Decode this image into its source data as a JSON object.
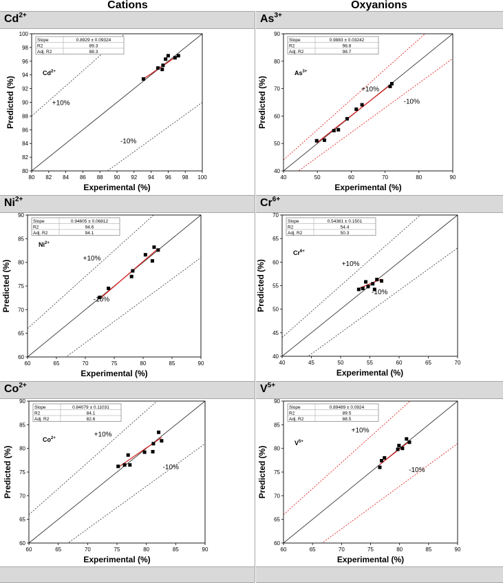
{
  "headers": {
    "left": "Cations",
    "right": "Oxyanions"
  },
  "chart_data": [
    {
      "id": "cd",
      "type": "scatter",
      "ion": "Cd",
      "charge": "2+",
      "xlabel": "Experimental (%)",
      "ylabel": "Predicted (%)",
      "xlim": [
        80,
        100
      ],
      "ylim": [
        80,
        100
      ],
      "xticks": [
        80,
        82,
        84,
        86,
        88,
        90,
        92,
        94,
        96,
        98,
        100
      ],
      "yticks": [
        80,
        82,
        84,
        86,
        88,
        90,
        92,
        94,
        96,
        98,
        100
      ],
      "stats": {
        "slope_label": "Slope",
        "slope": "0.8929 ± 0.09324",
        "r2_label": "R2",
        "r2": "89.3",
        "adjr2_label": "Adj. R2",
        "adjr2": "88.3"
      },
      "plus_label": "+10%",
      "minus_label": "-10%",
      "band_color": "#444444",
      "points": [
        [
          93.1,
          93.4
        ],
        [
          94.8,
          95.0
        ],
        [
          95.3,
          94.8
        ],
        [
          95.4,
          95.4
        ],
        [
          95.7,
          96.3
        ],
        [
          96.0,
          96.8
        ],
        [
          96.8,
          96.5
        ],
        [
          97.2,
          96.8
        ]
      ],
      "fit": [
        [
          93.1,
          93.4
        ],
        [
          97.2,
          96.9
        ]
      ]
    },
    {
      "id": "as",
      "type": "scatter",
      "ion": "As",
      "charge": "3+",
      "xlabel": "Experimental (%)",
      "ylabel": "Predicted (%)",
      "xlim": [
        40,
        90
      ],
      "ylim": [
        40,
        90
      ],
      "xticks": [
        40,
        50,
        60,
        70,
        80,
        90
      ],
      "yticks": [
        40,
        50,
        60,
        70,
        80,
        90
      ],
      "stats": {
        "slope_label": "Slope",
        "slope": "0.9883 ± 0.03242",
        "r2_label": "R2",
        "r2": "98.8",
        "adjr2_label": "Adj. R2",
        "adjr2": "98.7"
      },
      "plus_label": "+10%",
      "minus_label": "-10%",
      "band_color": "#e02020",
      "points": [
        [
          49.8,
          51.0
        ],
        [
          52.1,
          51.2
        ],
        [
          54.9,
          54.7
        ],
        [
          56.2,
          55.0
        ],
        [
          58.8,
          59.0
        ],
        [
          61.5,
          62.5
        ],
        [
          63.2,
          64.1
        ],
        [
          71.5,
          70.8
        ],
        [
          72.0,
          71.8
        ]
      ],
      "fit": [
        [
          49.8,
          50.2
        ],
        [
          72.0,
          71.8
        ]
      ]
    },
    {
      "id": "ni",
      "type": "scatter",
      "ion": "Ni",
      "charge": "2+",
      "xlabel": "Experimental (%)",
      "ylabel": "Predicted (%)",
      "xlim": [
        60,
        90
      ],
      "ylim": [
        60,
        90
      ],
      "xticks": [
        60,
        65,
        70,
        75,
        80,
        85,
        90
      ],
      "yticks": [
        60,
        65,
        70,
        75,
        80,
        85,
        90
      ],
      "stats": {
        "slope_label": "Slope",
        "slope": "0.94605 ± 0.06812",
        "r2_label": "R2",
        "r2": "94.6",
        "adjr2_label": "Adj. R2",
        "adjr2": "94.1"
      },
      "plus_label": "+10%",
      "minus_label": "-10%",
      "band_color": "#444444",
      "points": [
        [
          72.5,
          72.6
        ],
        [
          74.0,
          74.5
        ],
        [
          78.0,
          77.0
        ],
        [
          78.2,
          78.2
        ],
        [
          80.4,
          81.6
        ],
        [
          81.6,
          80.3
        ],
        [
          81.9,
          83.2
        ],
        [
          82.6,
          82.6
        ]
      ],
      "fit": [
        [
          72.5,
          72.3
        ],
        [
          82.6,
          82.9
        ]
      ]
    },
    {
      "id": "cr",
      "type": "scatter",
      "ion": "Cr",
      "charge": "6+",
      "xlabel": "Experimental (%)",
      "ylabel": "Predicted (%)",
      "xlim": [
        40,
        70
      ],
      "ylim": [
        40,
        70
      ],
      "xticks": [
        40,
        45,
        50,
        55,
        60,
        65,
        70
      ],
      "yticks": [
        40,
        45,
        50,
        55,
        60,
        65,
        70
      ],
      "stats": {
        "slope_label": "Slope",
        "slope": "0.54381 ± 0.1501",
        "r2_label": "R2",
        "r2": "54.4",
        "adjr2_label": "Adj. R2",
        "adjr2": "50.3"
      },
      "plus_label": "+10%",
      "minus_label": "-10%",
      "band_color": "#444444",
      "points": [
        [
          53.1,
          54.2
        ],
        [
          53.8,
          54.4
        ],
        [
          54.3,
          55.8
        ],
        [
          54.7,
          54.8
        ],
        [
          55.5,
          55.4
        ],
        [
          55.8,
          54.2
        ],
        [
          56.2,
          56.3
        ],
        [
          57.0,
          56.0
        ]
      ],
      "fit": [
        [
          53.1,
          54.4
        ],
        [
          57.0,
          56.4
        ]
      ]
    },
    {
      "id": "co",
      "type": "scatter",
      "ion": "Co",
      "charge": "2+",
      "xlabel": "Experimental (%)",
      "ylabel": "Predicted (%)",
      "xlim": [
        60,
        90
      ],
      "ylim": [
        60,
        90
      ],
      "xticks": [
        60,
        65,
        70,
        75,
        80,
        85,
        90
      ],
      "yticks": [
        60,
        65,
        70,
        75,
        80,
        85,
        90
      ],
      "stats": {
        "slope_label": "Slope",
        "slope": "0.84079 ± 0.11031",
        "r2_label": "R2",
        "r2": "84.1",
        "adjr2_label": "Adj. R2",
        "adjr2": "82.6"
      },
      "plus_label": "+10%",
      "minus_label": "-10%",
      "band_color": "#444444",
      "points": [
        [
          75.2,
          76.2
        ],
        [
          76.3,
          76.5
        ],
        [
          76.9,
          78.6
        ],
        [
          77.2,
          76.5
        ],
        [
          79.7,
          79.2
        ],
        [
          81.1,
          79.3
        ],
        [
          81.2,
          81.0
        ],
        [
          82.1,
          83.4
        ],
        [
          82.6,
          81.6
        ]
      ],
      "fit": [
        [
          75.2,
          76.0
        ],
        [
          82.6,
          82.3
        ]
      ]
    },
    {
      "id": "v",
      "type": "scatter",
      "ion": "V",
      "charge": "5+",
      "xlabel": "Experimental (%)",
      "ylabel": "Predicted (%)",
      "xlim": [
        60,
        90
      ],
      "ylim": [
        60,
        90
      ],
      "xticks": [
        60,
        65,
        70,
        75,
        80,
        85,
        90
      ],
      "yticks": [
        60,
        65,
        70,
        75,
        80,
        85,
        90
      ],
      "stats": {
        "slope_label": "Slope",
        "slope": "0.89489 ± 0.0924",
        "r2_label": "R2",
        "r2": "89.5",
        "adjr2_label": "Adj. R2",
        "adjr2": "88.5"
      },
      "plus_label": "+10%",
      "minus_label": "-10%",
      "band_color": "#e02020",
      "points": [
        [
          76.6,
          76.0
        ],
        [
          76.9,
          77.4
        ],
        [
          77.4,
          78.0
        ],
        [
          79.7,
          79.8
        ],
        [
          79.9,
          80.6
        ],
        [
          80.5,
          80.0
        ],
        [
          81.2,
          82.0
        ],
        [
          81.7,
          81.3
        ]
      ],
      "fit": [
        [
          76.6,
          76.6
        ],
        [
          81.7,
          81.5
        ]
      ]
    }
  ]
}
